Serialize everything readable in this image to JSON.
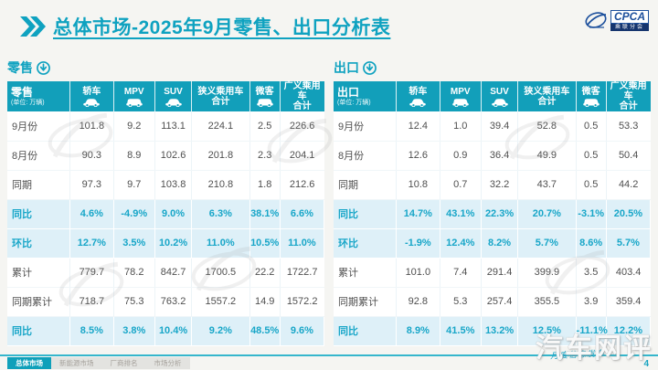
{
  "page": {
    "title_bold": "总体市场",
    "title_rest": "-2025年9月零售、出口分析表",
    "page_number": "4",
    "watermark": "汽车网评",
    "script_note": "月度信息发布"
  },
  "logo": {
    "text": "CPCA",
    "subtext": "乘联分会"
  },
  "colors": {
    "accent": "#129fba",
    "highlight_bg": "#def0f8",
    "highlight_text": "#18a6c8"
  },
  "tabs": [
    {
      "label": "总体市场",
      "active": true
    },
    {
      "label": "新能源市场",
      "active": false
    },
    {
      "label": "厂商排名",
      "active": false
    },
    {
      "label": "市场分析",
      "active": false
    }
  ],
  "tables": [
    {
      "section_label": "零售",
      "unit": "(单位: 万辆)",
      "columns": [
        {
          "label": "轿车",
          "icon": "car-icon"
        },
        {
          "label": "MPV",
          "icon": "mpv-icon"
        },
        {
          "label": "SUV",
          "icon": "suv-icon"
        },
        {
          "label": "狭义乘用车",
          "label2": "合计"
        },
        {
          "label": "微客",
          "icon": "van-icon"
        },
        {
          "label": "广义乘用车",
          "label2": "合计"
        }
      ],
      "rows": [
        {
          "label": "9月份",
          "values": [
            "101.8",
            "9.2",
            "113.1",
            "224.1",
            "2.5",
            "226.6"
          ],
          "highlight": false
        },
        {
          "label": "8月份",
          "values": [
            "90.3",
            "8.9",
            "102.6",
            "201.8",
            "2.3",
            "204.1"
          ],
          "highlight": false
        },
        {
          "label": "同期",
          "values": [
            "97.3",
            "9.7",
            "103.8",
            "210.8",
            "1.8",
            "212.6"
          ],
          "highlight": false
        },
        {
          "label": "同比",
          "values": [
            "4.6%",
            "-4.9%",
            "9.0%",
            "6.3%",
            "38.1%",
            "6.6%"
          ],
          "highlight": true
        },
        {
          "label": "环比",
          "values": [
            "12.7%",
            "3.5%",
            "10.2%",
            "11.0%",
            "10.5%",
            "11.0%"
          ],
          "highlight": true
        },
        {
          "label": "累计",
          "values": [
            "779.7",
            "78.2",
            "842.7",
            "1700.5",
            "22.2",
            "1722.7"
          ],
          "highlight": false
        },
        {
          "label": "同期累计",
          "values": [
            "718.7",
            "75.3",
            "763.2",
            "1557.2",
            "14.9",
            "1572.2"
          ],
          "highlight": false
        },
        {
          "label": "同比",
          "values": [
            "8.5%",
            "3.8%",
            "10.4%",
            "9.2%",
            "48.5%",
            "9.6%"
          ],
          "highlight": true
        }
      ]
    },
    {
      "section_label": "出口",
      "unit": "(单位: 万辆)",
      "columns": [
        {
          "label": "轿车",
          "icon": "car-icon"
        },
        {
          "label": "MPV",
          "icon": "mpv-icon"
        },
        {
          "label": "SUV",
          "icon": "suv-icon"
        },
        {
          "label": "狭义乘用车",
          "label2": "合计"
        },
        {
          "label": "微客",
          "icon": "van-icon"
        },
        {
          "label": "广义乘用车",
          "label2": "合计"
        }
      ],
      "rows": [
        {
          "label": "9月份",
          "values": [
            "12.4",
            "1.0",
            "39.4",
            "52.8",
            "0.5",
            "53.3"
          ],
          "highlight": false
        },
        {
          "label": "8月份",
          "values": [
            "12.6",
            "0.9",
            "36.4",
            "49.9",
            "0.5",
            "50.4"
          ],
          "highlight": false
        },
        {
          "label": "同期",
          "values": [
            "10.8",
            "0.7",
            "32.2",
            "43.7",
            "0.5",
            "44.2"
          ],
          "highlight": false
        },
        {
          "label": "同比",
          "values": [
            "14.7%",
            "43.1%",
            "22.3%",
            "20.7%",
            "-3.1%",
            "20.5%"
          ],
          "highlight": true
        },
        {
          "label": "环比",
          "values": [
            "-1.9%",
            "12.4%",
            "8.2%",
            "5.7%",
            "8.6%",
            "5.7%"
          ],
          "highlight": true
        },
        {
          "label": "累计",
          "values": [
            "101.0",
            "7.4",
            "291.4",
            "399.9",
            "3.5",
            "403.4"
          ],
          "highlight": false
        },
        {
          "label": "同期累计",
          "values": [
            "92.8",
            "5.3",
            "257.4",
            "355.5",
            "3.9",
            "359.4"
          ],
          "highlight": false
        },
        {
          "label": "同比",
          "values": [
            "8.9%",
            "41.5%",
            "13.2%",
            "12.5%",
            "-11.1%",
            "12.2%"
          ],
          "highlight": true
        }
      ]
    }
  ]
}
